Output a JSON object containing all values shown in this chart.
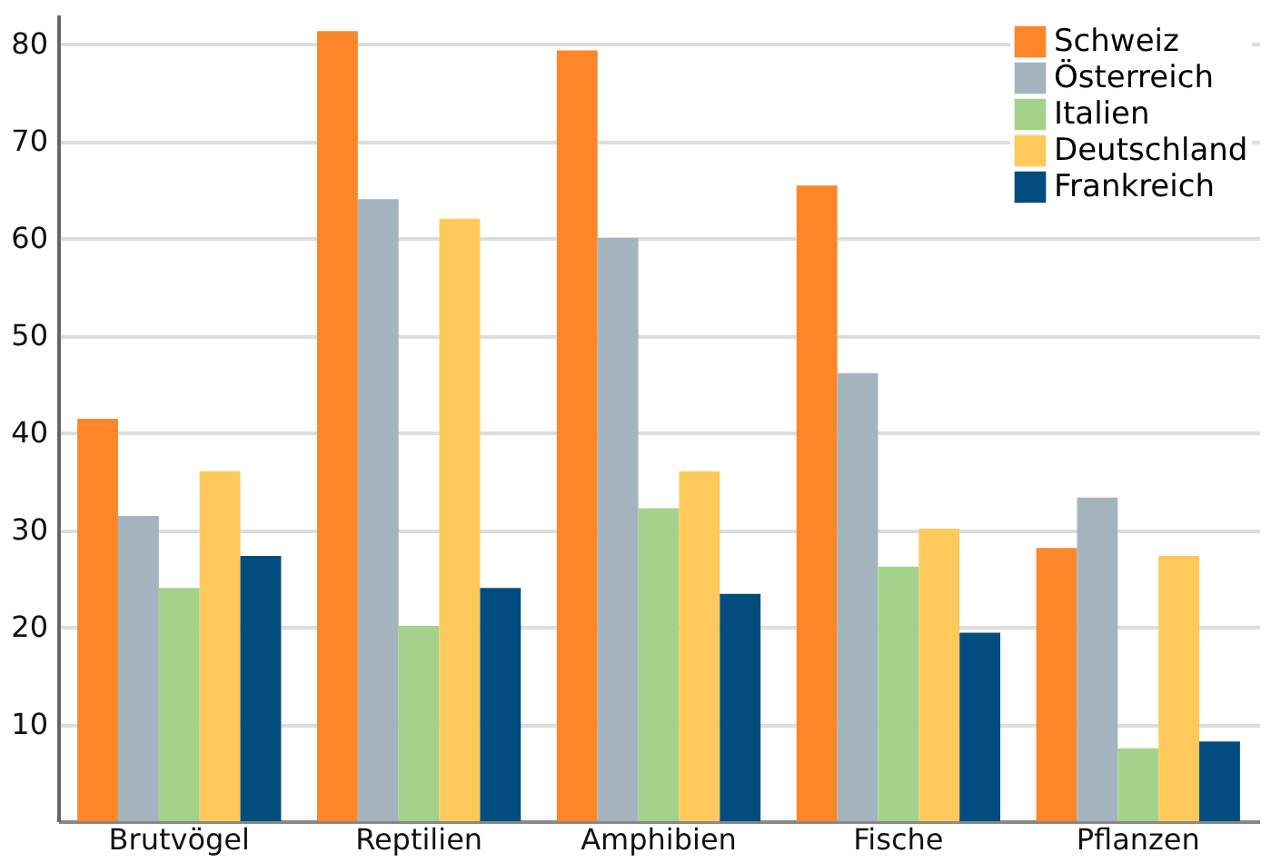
{
  "chart_data": {
    "type": "bar",
    "categories": [
      "Brutvögel",
      "Reptilien",
      "Amphibien",
      "Fische",
      "Pflanzen"
    ],
    "series": [
      {
        "name": "Schweiz",
        "color": "#fd8628",
        "values": [
          41.4,
          81.3,
          79.3,
          65.4,
          28.1
        ]
      },
      {
        "name": "Österreich",
        "color": "#a4b4bf",
        "values": [
          31.4,
          64.0,
          60.0,
          46.1,
          33.3
        ]
      },
      {
        "name": "Italien",
        "color": "#a5d28a",
        "values": [
          24.0,
          20.1,
          32.2,
          26.2,
          7.5
        ]
      },
      {
        "name": "Deutschland",
        "color": "#fec95a",
        "values": [
          36.0,
          62.0,
          36.0,
          30.1,
          27.3
        ]
      },
      {
        "name": "Frankreich",
        "color": "#024c80",
        "values": [
          27.3,
          24.0,
          23.4,
          19.4,
          8.2
        ]
      }
    ],
    "ylim": [
      0,
      83
    ],
    "yticks": [
      10,
      20,
      30,
      40,
      50,
      60,
      70,
      80
    ],
    "grid": "y",
    "legend": "top right"
  }
}
